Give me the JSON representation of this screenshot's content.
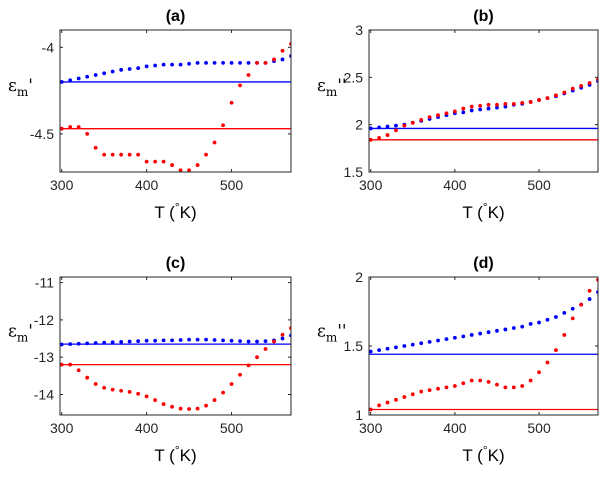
{
  "chart_data": [
    {
      "id": "a",
      "type": "scatter",
      "title": "(a)",
      "xlabel": "T (°K)",
      "ylabel": "εm'",
      "xlim": [
        298,
        570
      ],
      "ylim": [
        -4.72,
        -3.9
      ],
      "xticks": [
        300,
        400,
        500
      ],
      "yticks": [
        -4.5,
        -4
      ],
      "grid": false,
      "hlines": [
        {
          "y": -4.2,
          "color": "#0000ff"
        },
        {
          "y": -4.47,
          "color": "#ff0000"
        }
      ],
      "series": [
        {
          "color": "#0000ff",
          "x": [
            300,
            310,
            320,
            330,
            340,
            350,
            360,
            370,
            380,
            390,
            400,
            410,
            420,
            430,
            440,
            450,
            460,
            470,
            480,
            490,
            500,
            510,
            520,
            530,
            540,
            550,
            560,
            570
          ],
          "y": [
            -4.2,
            -4.19,
            -4.18,
            -4.17,
            -4.16,
            -4.15,
            -4.14,
            -4.13,
            -4.125,
            -4.12,
            -4.11,
            -4.105,
            -4.1,
            -4.1,
            -4.1,
            -4.095,
            -4.09,
            -4.09,
            -4.09,
            -4.09,
            -4.09,
            -4.09,
            -4.09,
            -4.09,
            -4.09,
            -4.08,
            -4.07,
            -4.05
          ]
        },
        {
          "color": "#ff0000",
          "x": [
            300,
            310,
            320,
            330,
            340,
            350,
            360,
            370,
            380,
            390,
            400,
            410,
            420,
            430,
            440,
            450,
            460,
            470,
            480,
            490,
            500,
            510,
            520,
            530,
            540,
            550,
            560,
            570
          ],
          "y": [
            -4.47,
            -4.46,
            -4.46,
            -4.5,
            -4.58,
            -4.62,
            -4.62,
            -4.62,
            -4.62,
            -4.62,
            -4.66,
            -4.66,
            -4.66,
            -4.68,
            -4.71,
            -4.71,
            -4.68,
            -4.62,
            -4.55,
            -4.45,
            -4.32,
            -4.22,
            -4.16,
            -4.09,
            -4.09,
            -4.07,
            -4.02,
            -3.98
          ]
        }
      ]
    },
    {
      "id": "b",
      "type": "scatter",
      "title": "(b)",
      "xlabel": "T (°K)",
      "ylabel": "εm''",
      "xlim": [
        298,
        570
      ],
      "ylim": [
        1.5,
        3
      ],
      "xticks": [
        300,
        400,
        500
      ],
      "yticks": [
        1.5,
        2,
        2.5,
        3
      ],
      "grid": false,
      "hlines": [
        {
          "y": 1.96,
          "color": "#0000ff"
        },
        {
          "y": 1.84,
          "color": "#ff0000"
        }
      ],
      "series": [
        {
          "color": "#0000ff",
          "x": [
            300,
            310,
            320,
            330,
            340,
            350,
            360,
            370,
            380,
            390,
            400,
            410,
            420,
            430,
            440,
            450,
            460,
            470,
            480,
            490,
            500,
            510,
            520,
            530,
            540,
            550,
            560,
            570
          ],
          "y": [
            1.96,
            1.97,
            1.98,
            1.99,
            2.0,
            2.02,
            2.04,
            2.06,
            2.08,
            2.1,
            2.12,
            2.13,
            2.15,
            2.16,
            2.17,
            2.18,
            2.19,
            2.21,
            2.22,
            2.24,
            2.26,
            2.28,
            2.3,
            2.33,
            2.36,
            2.39,
            2.42,
            2.46
          ]
        },
        {
          "color": "#ff0000",
          "x": [
            300,
            310,
            320,
            330,
            340,
            350,
            360,
            370,
            380,
            390,
            400,
            410,
            420,
            430,
            440,
            450,
            460,
            470,
            480,
            490,
            500,
            510,
            520,
            530,
            540,
            550,
            560,
            570
          ],
          "y": [
            1.84,
            1.86,
            1.89,
            1.94,
            1.99,
            2.02,
            2.05,
            2.08,
            2.1,
            2.12,
            2.14,
            2.17,
            2.19,
            2.2,
            2.21,
            2.21,
            2.22,
            2.22,
            2.23,
            2.24,
            2.26,
            2.28,
            2.31,
            2.34,
            2.38,
            2.41,
            2.44,
            2.48
          ]
        }
      ]
    },
    {
      "id": "c",
      "type": "scatter",
      "title": "(c)",
      "xlabel": "T (°K)",
      "ylabel": "εm'",
      "xlim": [
        298,
        570
      ],
      "ylim": [
        -14.55,
        -10.85
      ],
      "xticks": [
        300,
        400,
        500
      ],
      "yticks": [
        -14,
        -13,
        -12,
        -11
      ],
      "grid": false,
      "hlines": [
        {
          "y": -12.65,
          "color": "#0000ff"
        },
        {
          "y": -13.2,
          "color": "#ff0000"
        }
      ],
      "series": [
        {
          "color": "#0000ff",
          "x": [
            300,
            310,
            320,
            330,
            340,
            350,
            360,
            370,
            380,
            390,
            400,
            410,
            420,
            430,
            440,
            450,
            460,
            470,
            480,
            490,
            500,
            510,
            520,
            530,
            540,
            550,
            560,
            570
          ],
          "y": [
            -12.66,
            -12.65,
            -12.64,
            -12.63,
            -12.62,
            -12.61,
            -12.6,
            -12.59,
            -12.58,
            -12.57,
            -12.56,
            -12.56,
            -12.55,
            -12.55,
            -12.54,
            -12.53,
            -12.53,
            -12.53,
            -12.54,
            -12.55,
            -12.56,
            -12.57,
            -12.58,
            -12.58,
            -12.57,
            -12.55,
            -12.5,
            -12.42
          ]
        },
        {
          "color": "#ff0000",
          "x": [
            300,
            310,
            320,
            330,
            340,
            350,
            360,
            370,
            380,
            390,
            400,
            410,
            420,
            430,
            440,
            450,
            460,
            470,
            480,
            490,
            500,
            510,
            520,
            530,
            540,
            550,
            560,
            570
          ],
          "y": [
            -13.2,
            -13.2,
            -13.35,
            -13.55,
            -13.72,
            -13.82,
            -13.87,
            -13.9,
            -13.93,
            -13.98,
            -14.05,
            -14.15,
            -14.26,
            -14.33,
            -14.38,
            -14.39,
            -14.38,
            -14.3,
            -14.15,
            -13.95,
            -13.72,
            -13.47,
            -13.22,
            -13.0,
            -12.78,
            -12.58,
            -12.4,
            -12.22
          ]
        }
      ]
    },
    {
      "id": "d",
      "type": "scatter",
      "title": "(d)",
      "xlabel": "T (°K)",
      "ylabel": "εm''",
      "xlim": [
        298,
        570
      ],
      "ylim": [
        1,
        2
      ],
      "xticks": [
        300,
        400,
        500
      ],
      "yticks": [
        1,
        1.5,
        2
      ],
      "grid": false,
      "hlines": [
        {
          "y": 1.44,
          "color": "#0000ff"
        },
        {
          "y": 1.04,
          "color": "#ff0000"
        }
      ],
      "series": [
        {
          "color": "#0000ff",
          "x": [
            300,
            310,
            320,
            330,
            340,
            350,
            360,
            370,
            380,
            390,
            400,
            410,
            420,
            430,
            440,
            450,
            460,
            470,
            480,
            490,
            500,
            510,
            520,
            530,
            540,
            550,
            560,
            570
          ],
          "y": [
            1.46,
            1.47,
            1.48,
            1.49,
            1.5,
            1.51,
            1.52,
            1.53,
            1.54,
            1.55,
            1.56,
            1.57,
            1.58,
            1.59,
            1.6,
            1.61,
            1.62,
            1.63,
            1.64,
            1.66,
            1.67,
            1.69,
            1.71,
            1.74,
            1.77,
            1.8,
            1.84,
            1.89
          ]
        },
        {
          "color": "#ff0000",
          "x": [
            300,
            310,
            320,
            330,
            340,
            350,
            360,
            370,
            380,
            390,
            400,
            410,
            420,
            430,
            440,
            450,
            460,
            470,
            480,
            490,
            500,
            510,
            520,
            530,
            540,
            550,
            560,
            570
          ],
          "y": [
            1.04,
            1.07,
            1.09,
            1.11,
            1.13,
            1.15,
            1.17,
            1.18,
            1.19,
            1.2,
            1.21,
            1.23,
            1.25,
            1.25,
            1.24,
            1.22,
            1.2,
            1.2,
            1.21,
            1.25,
            1.31,
            1.38,
            1.47,
            1.58,
            1.7,
            1.8,
            1.9,
            1.98
          ]
        }
      ]
    }
  ]
}
